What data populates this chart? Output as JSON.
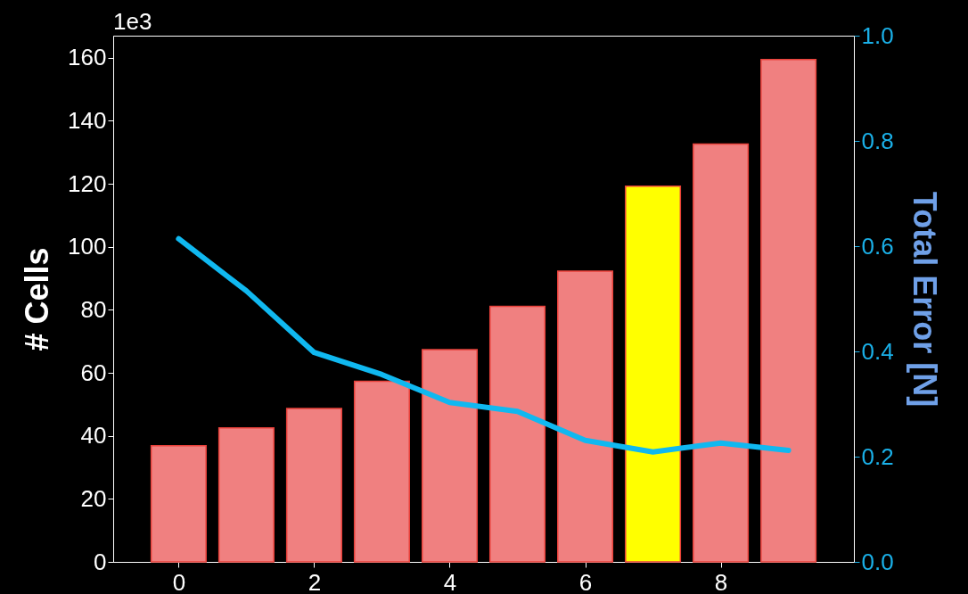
{
  "chart_data": {
    "type": "bar",
    "ylabel": "# Cells",
    "y2label": "Total Error [N]",
    "annotations": [
      "1e3"
    ],
    "x": [
      0,
      1,
      2,
      3,
      4,
      5,
      6,
      7,
      8,
      9
    ],
    "series": [
      {
        "colors": [
          "#f08080",
          "#f08080",
          "#f08080",
          "#f08080",
          "#f08080",
          "#f08080",
          "#f08080",
          "#ffff00",
          "#f08080",
          "#f08080"
        ],
        "values": [
          36.9,
          42.5,
          48.7,
          57.3,
          67.4,
          81.1,
          92.3,
          119.2,
          132.6,
          159.4
        ]
      },
      {
        "type": "line",
        "axis": "y2",
        "color": "#10b8f0",
        "values": [
          0.614,
          0.515,
          0.398,
          0.356,
          0.303,
          0.286,
          0.231,
          0.209,
          0.226,
          0.212
        ]
      }
    ],
    "xlim": [
      -0.9,
      9.9
    ],
    "xticks": [
      0,
      2,
      4,
      6,
      8
    ],
    "ylim": [
      0,
      167
    ],
    "yticks": [
      0,
      20,
      40,
      60,
      80,
      100,
      120,
      140,
      160
    ],
    "y2lim": [
      0,
      1
    ],
    "y2ticks": [
      {
        "value": 0,
        "label": "0.0"
      },
      0.2,
      0.4,
      0.6,
      0.8,
      {
        "value": 1,
        "label": "1.0"
      }
    ],
    "grid": false
  }
}
